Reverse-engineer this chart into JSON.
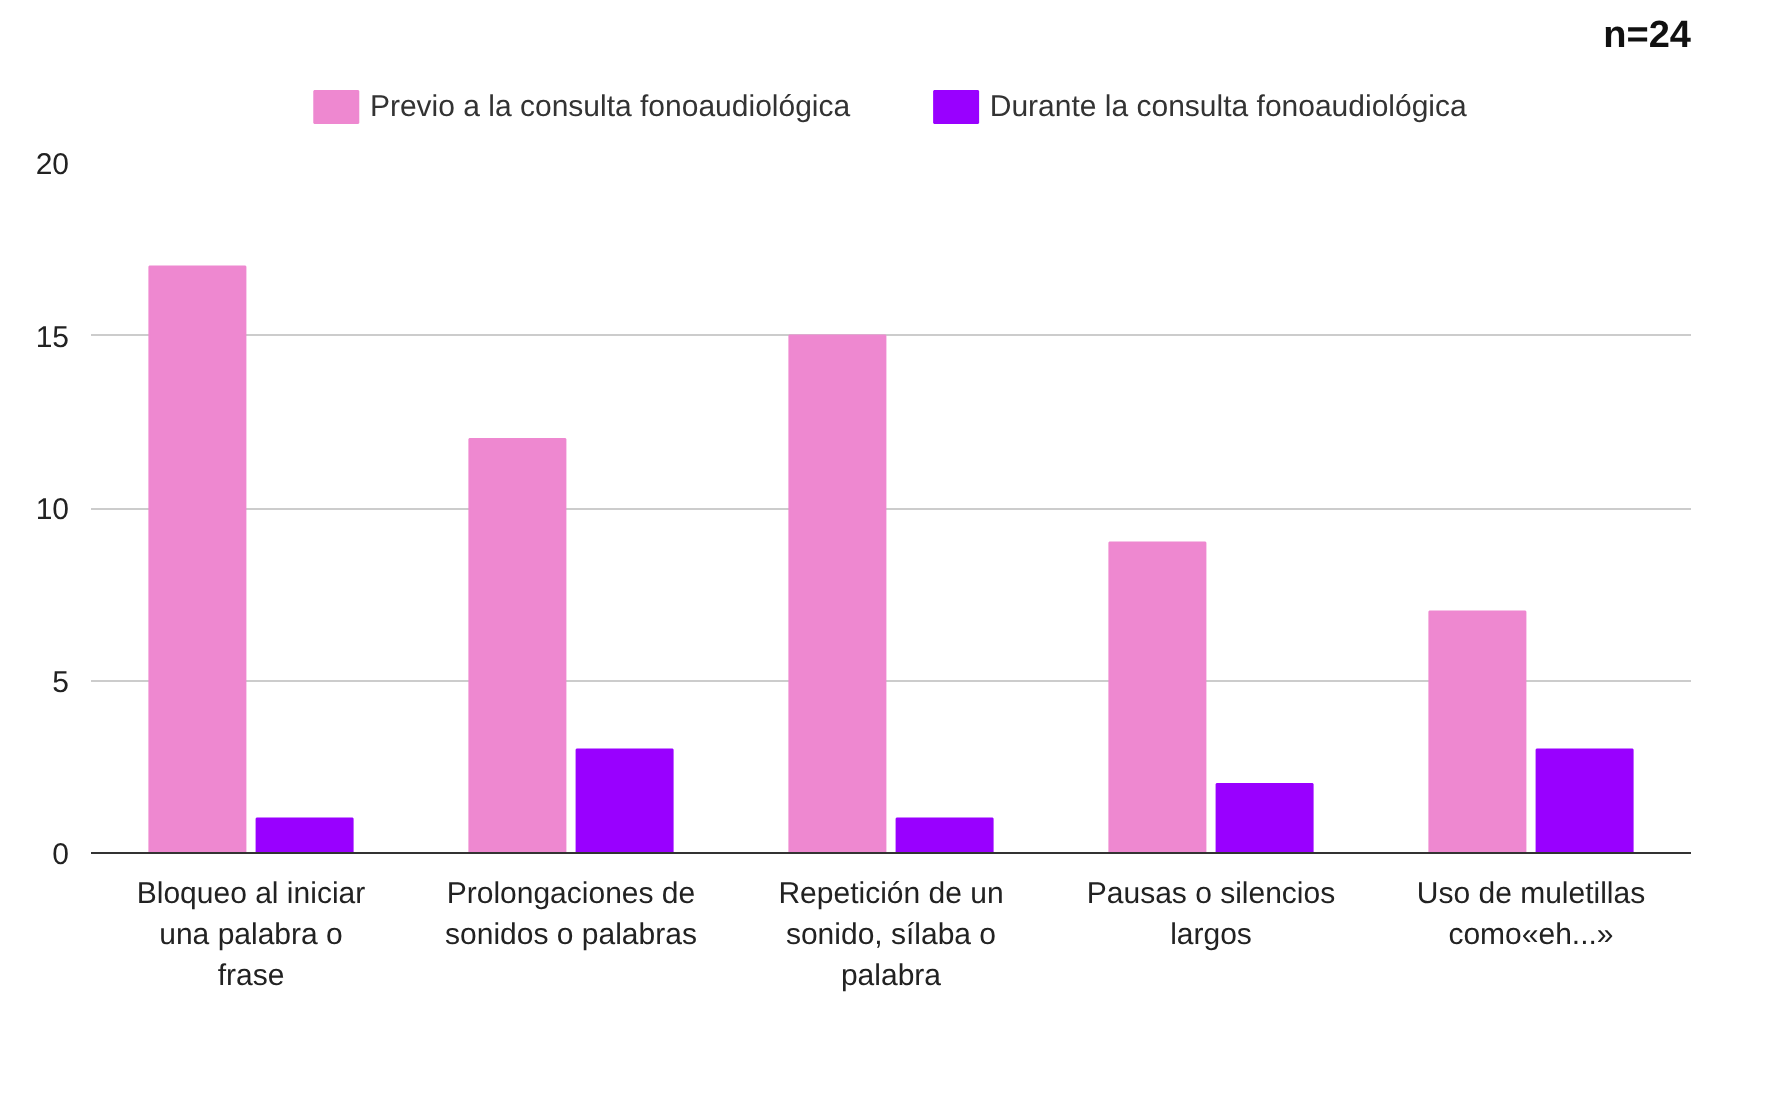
{
  "chart_data": {
    "type": "bar",
    "title": "n=24",
    "categories": [
      "Bloqueo al iniciar una palabra o frase",
      "Prolongaciones de sonidos o palabras",
      "Repetición de un sonido, sílaba o palabra",
      "Pausas o silencios largos",
      "Uso de muletillas como«eh...»"
    ],
    "series": [
      {
        "name": "Previo a la consulta fonoaudiológica",
        "color": "#ee88d0",
        "values": [
          17,
          12,
          15,
          9,
          7
        ]
      },
      {
        "name": "Durante la consulta fonoaudiológica",
        "color": "#9900ff",
        "values": [
          1,
          3,
          1,
          2,
          3
        ]
      }
    ],
    "ylim": [
      0,
      20
    ],
    "yticks": [
      0,
      5,
      10,
      15,
      20
    ],
    "grid": "y",
    "legend": "top"
  }
}
